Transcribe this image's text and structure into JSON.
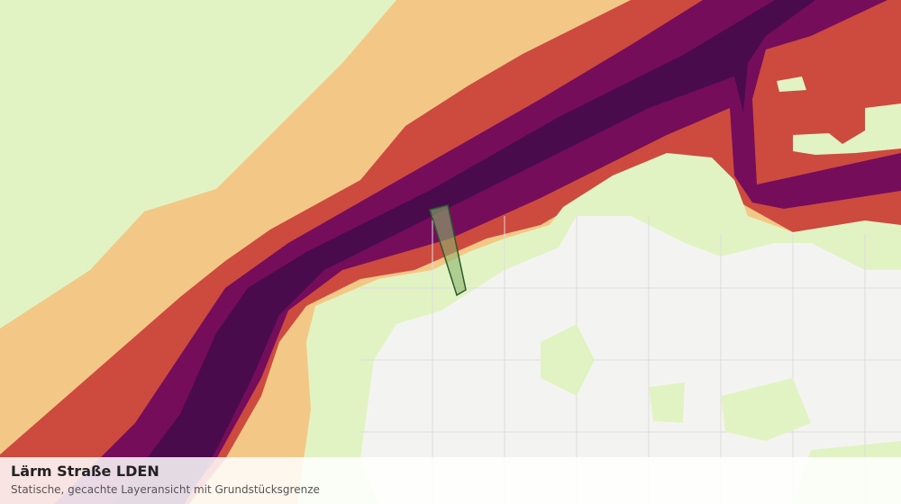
{
  "title": "Lärm Straße LDEN",
  "subtitle": "Statische, gecachte Layeransicht mit Grundstücksgrenze"
}
